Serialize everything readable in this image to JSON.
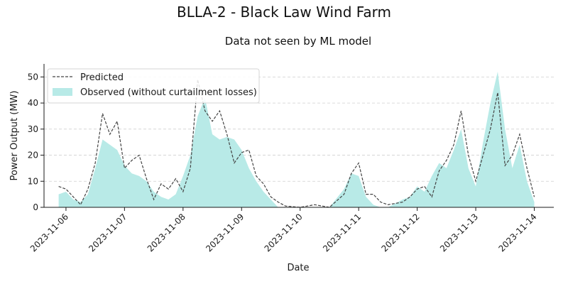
{
  "chart_data": {
    "type": "area",
    "title": "BLLA-2 - Black Law Wind Farm",
    "subtitle": "Data not seen by ML model",
    "xlabel": "Date",
    "ylabel": "Power Output (MW)",
    "ylim": [
      0,
      55
    ],
    "xlim": [
      "2023-11-05T15:00",
      "2023-11-14T08:00"
    ],
    "grid": "horizontal dashed",
    "legend_position": "top-left",
    "x_ticks": [
      "2023-11-06",
      "2023-11-07",
      "2023-11-08",
      "2023-11-09",
      "2023-11-10",
      "2023-11-11",
      "2023-11-12",
      "2023-11-13",
      "2023-11-14"
    ],
    "y_ticks": [
      0,
      10,
      20,
      30,
      40,
      50
    ],
    "colors": {
      "observed": "#b8eae7",
      "predicted": "#444444"
    },
    "series": [
      {
        "name": "Predicted",
        "style": "dashed-line",
        "points": [
          [
            "2023-11-05T21:00",
            8
          ],
          [
            "2023-11-06T00:00",
            7
          ],
          [
            "2023-11-06T03:00",
            4
          ],
          [
            "2023-11-06T06:00",
            1
          ],
          [
            "2023-11-06T09:00",
            7
          ],
          [
            "2023-11-06T12:00",
            17
          ],
          [
            "2023-11-06T15:00",
            36
          ],
          [
            "2023-11-06T18:00",
            28
          ],
          [
            "2023-11-06T21:00",
            33
          ],
          [
            "2023-11-07T00:00",
            15
          ],
          [
            "2023-11-07T03:00",
            18
          ],
          [
            "2023-11-07T06:00",
            20
          ],
          [
            "2023-11-07T09:00",
            11
          ],
          [
            "2023-11-07T12:00",
            3
          ],
          [
            "2023-11-07T15:00",
            9
          ],
          [
            "2023-11-07T18:00",
            7
          ],
          [
            "2023-11-07T21:00",
            11
          ],
          [
            "2023-11-08T00:00",
            6
          ],
          [
            "2023-11-08T03:00",
            15
          ],
          [
            "2023-11-08T06:00",
            49
          ],
          [
            "2023-11-08T09:00",
            37
          ],
          [
            "2023-11-08T12:00",
            33
          ],
          [
            "2023-11-08T15:00",
            37
          ],
          [
            "2023-11-08T18:00",
            28
          ],
          [
            "2023-11-08T21:00",
            17
          ],
          [
            "2023-11-09T00:00",
            21
          ],
          [
            "2023-11-09T03:00",
            22
          ],
          [
            "2023-11-09T06:00",
            12
          ],
          [
            "2023-11-09T09:00",
            9
          ],
          [
            "2023-11-09T12:00",
            4
          ],
          [
            "2023-11-09T15:00",
            2
          ],
          [
            "2023-11-09T18:00",
            0.5
          ],
          [
            "2023-11-10T00:00",
            0
          ],
          [
            "2023-11-10T06:00",
            1
          ],
          [
            "2023-11-10T12:00",
            0
          ],
          [
            "2023-11-10T18:00",
            5
          ],
          [
            "2023-11-10T21:00",
            13
          ],
          [
            "2023-11-11T00:00",
            17
          ],
          [
            "2023-11-11T03:00",
            5
          ],
          [
            "2023-11-11T06:00",
            5
          ],
          [
            "2023-11-11T09:00",
            2
          ],
          [
            "2023-11-11T12:00",
            1
          ],
          [
            "2023-11-11T18:00",
            2
          ],
          [
            "2023-11-11T21:00",
            4
          ],
          [
            "2023-11-12T00:00",
            7
          ],
          [
            "2023-11-12T03:00",
            8
          ],
          [
            "2023-11-12T06:00",
            4
          ],
          [
            "2023-11-12T09:00",
            14
          ],
          [
            "2023-11-12T12:00",
            18
          ],
          [
            "2023-11-12T15:00",
            24
          ],
          [
            "2023-11-12T18:00",
            37
          ],
          [
            "2023-11-12T21:00",
            20
          ],
          [
            "2023-11-13T00:00",
            10
          ],
          [
            "2023-11-13T03:00",
            20
          ],
          [
            "2023-11-13T06:00",
            30
          ],
          [
            "2023-11-13T09:00",
            44
          ],
          [
            "2023-11-13T12:00",
            16
          ],
          [
            "2023-11-13T15:00",
            20
          ],
          [
            "2023-11-13T18:00",
            28
          ],
          [
            "2023-11-13T21:00",
            15
          ],
          [
            "2023-11-14T00:00",
            4
          ]
        ]
      },
      {
        "name": "Observed (without curtailment losses)",
        "style": "filled-area",
        "points": [
          [
            "2023-11-05T21:00",
            5
          ],
          [
            "2023-11-06T00:00",
            6
          ],
          [
            "2023-11-06T03:00",
            3
          ],
          [
            "2023-11-06T06:00",
            2
          ],
          [
            "2023-11-06T09:00",
            5
          ],
          [
            "2023-11-06T12:00",
            15
          ],
          [
            "2023-11-06T15:00",
            26
          ],
          [
            "2023-11-06T18:00",
            24
          ],
          [
            "2023-11-06T21:00",
            22
          ],
          [
            "2023-11-07T00:00",
            16
          ],
          [
            "2023-11-07T03:00",
            13
          ],
          [
            "2023-11-07T06:00",
            12
          ],
          [
            "2023-11-07T09:00",
            10
          ],
          [
            "2023-11-07T12:00",
            6
          ],
          [
            "2023-11-07T15:00",
            4
          ],
          [
            "2023-11-07T18:00",
            3
          ],
          [
            "2023-11-07T21:00",
            5
          ],
          [
            "2023-11-08T00:00",
            12
          ],
          [
            "2023-11-08T03:00",
            20
          ],
          [
            "2023-11-08T06:00",
            35
          ],
          [
            "2023-11-08T09:00",
            42
          ],
          [
            "2023-11-08T12:00",
            28
          ],
          [
            "2023-11-08T15:00",
            26
          ],
          [
            "2023-11-08T18:00",
            27
          ],
          [
            "2023-11-08T21:00",
            26
          ],
          [
            "2023-11-09T00:00",
            22
          ],
          [
            "2023-11-09T03:00",
            15
          ],
          [
            "2023-11-09T06:00",
            10
          ],
          [
            "2023-11-09T09:00",
            6
          ],
          [
            "2023-11-09T12:00",
            3
          ],
          [
            "2023-11-09T15:00",
            0
          ],
          [
            "2023-11-09T18:00",
            0
          ],
          [
            "2023-11-10T00:00",
            0
          ],
          [
            "2023-11-10T06:00",
            0
          ],
          [
            "2023-11-10T12:00",
            0
          ],
          [
            "2023-11-10T18:00",
            7
          ],
          [
            "2023-11-10T21:00",
            13
          ],
          [
            "2023-11-11T00:00",
            12
          ],
          [
            "2023-11-11T03:00",
            4
          ],
          [
            "2023-11-11T06:00",
            1
          ],
          [
            "2023-11-11T09:00",
            0
          ],
          [
            "2023-11-11T12:00",
            0
          ],
          [
            "2023-11-11T18:00",
            3
          ],
          [
            "2023-11-11T21:00",
            4
          ],
          [
            "2023-11-12T00:00",
            8
          ],
          [
            "2023-11-12T03:00",
            6
          ],
          [
            "2023-11-12T06:00",
            12
          ],
          [
            "2023-11-12T09:00",
            17
          ],
          [
            "2023-11-12T12:00",
            15
          ],
          [
            "2023-11-12T15:00",
            22
          ],
          [
            "2023-11-12T18:00",
            30
          ],
          [
            "2023-11-12T21:00",
            15
          ],
          [
            "2023-11-13T00:00",
            8
          ],
          [
            "2023-11-13T03:00",
            25
          ],
          [
            "2023-11-13T06:00",
            40
          ],
          [
            "2023-11-13T09:00",
            52
          ],
          [
            "2023-11-13T12:00",
            30
          ],
          [
            "2023-11-13T15:00",
            15
          ],
          [
            "2023-11-13T18:00",
            24
          ],
          [
            "2023-11-13T21:00",
            10
          ],
          [
            "2023-11-14T00:00",
            2
          ]
        ]
      }
    ]
  }
}
